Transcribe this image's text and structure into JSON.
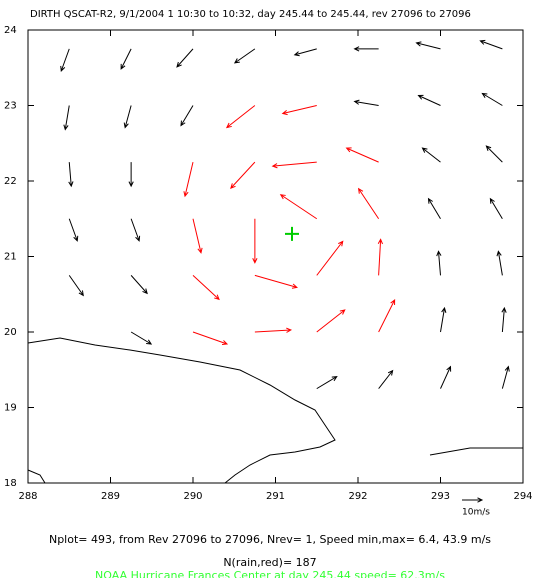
{
  "chart_data": {
    "type": "quiver",
    "title": "DIRTH QSCAT-R2,  9/1/2004 1 10:30 to 10:32, day 245.44 to 245.44, rev 27096 to 27096",
    "xlim": [
      288,
      294
    ],
    "ylim": [
      18,
      24
    ],
    "xticks": [
      288,
      289,
      290,
      291,
      292,
      293,
      294
    ],
    "yticks": [
      18,
      19,
      20,
      21,
      22,
      23,
      24
    ],
    "series": [
      {
        "color": "#000000",
        "x": [
          288.5,
          289.25,
          290,
          290.75,
          291.5,
          292.25,
          293,
          293.75,
          288.5,
          289.25,
          290,
          292.25,
          293,
          293.75,
          288.5,
          289.25,
          293,
          293.75,
          288.5,
          289.25,
          293,
          293.75,
          288.5,
          289.25,
          293,
          293.75,
          289.25,
          293,
          293.75,
          291.5,
          292.25,
          293,
          293.75
        ],
        "y": [
          23.75,
          23.75,
          23.75,
          23.75,
          23.75,
          23.75,
          23.75,
          23.75,
          23,
          23,
          23,
          23,
          23,
          23,
          22.25,
          22.25,
          22.25,
          22.25,
          21.5,
          21.5,
          21.5,
          21.5,
          20.75,
          20.75,
          20.75,
          20.75,
          20,
          20,
          20,
          19.25,
          19.25,
          19.25,
          19.25
        ],
        "u": [
          -4,
          -5,
          -8,
          -10,
          -11,
          -12,
          -12,
          -11,
          -2,
          -3,
          -6,
          -12,
          -11,
          -10,
          1,
          0,
          -9,
          -8,
          4,
          4,
          -6,
          -6,
          7,
          8,
          -1,
          -2,
          10,
          2,
          1,
          10,
          7,
          5,
          3
        ],
        "v": [
          -11,
          -10,
          -9,
          -7,
          -3,
          0,
          3,
          4,
          -12,
          -11,
          -10,
          2,
          5,
          6,
          -12,
          -12,
          7,
          8,
          -11,
          -11,
          10,
          10,
          -10,
          -9,
          12,
          12,
          -6,
          12,
          12,
          6,
          9,
          11,
          11
        ]
      },
      {
        "color": "#ff0000",
        "x": [
          290.75,
          291.5,
          290,
          290.75,
          291.5,
          292.25,
          290,
          290.75,
          291.5,
          292.25,
          290,
          290.75,
          291.5,
          292.25,
          290,
          290.75,
          291.5,
          292.25
        ],
        "y": [
          23,
          23,
          22.25,
          22.25,
          22.25,
          22.25,
          21.5,
          21.5,
          21.5,
          21.5,
          20.75,
          20.75,
          20.75,
          20.75,
          20,
          20,
          20,
          20
        ],
        "u": [
          -14,
          -17,
          -4,
          -12,
          -22,
          -16,
          4,
          0,
          -18,
          -10,
          13,
          21,
          13,
          1,
          17,
          18,
          14,
          8
        ],
        "v": [
          -11,
          -4,
          -17,
          -13,
          -2,
          7,
          -17,
          -22,
          12,
          15,
          -12,
          -6,
          17,
          18,
          -6,
          1,
          11,
          16
        ]
      }
    ],
    "reference": {
      "value": 10,
      "label": "10m/s"
    },
    "center": {
      "x": 291.2,
      "y": 21.3,
      "color": "#00cc00"
    },
    "stats": "Nplot=     493, from Rev 27096 to 27096, Nrev= 1, Speed min,max= 6.4, 43.9 m/s",
    "rain_count": "N(rain,red)=    187",
    "center_note": "NOAA Hurricane Frances Center at day  245.44 speed=  62.3m/s"
  }
}
